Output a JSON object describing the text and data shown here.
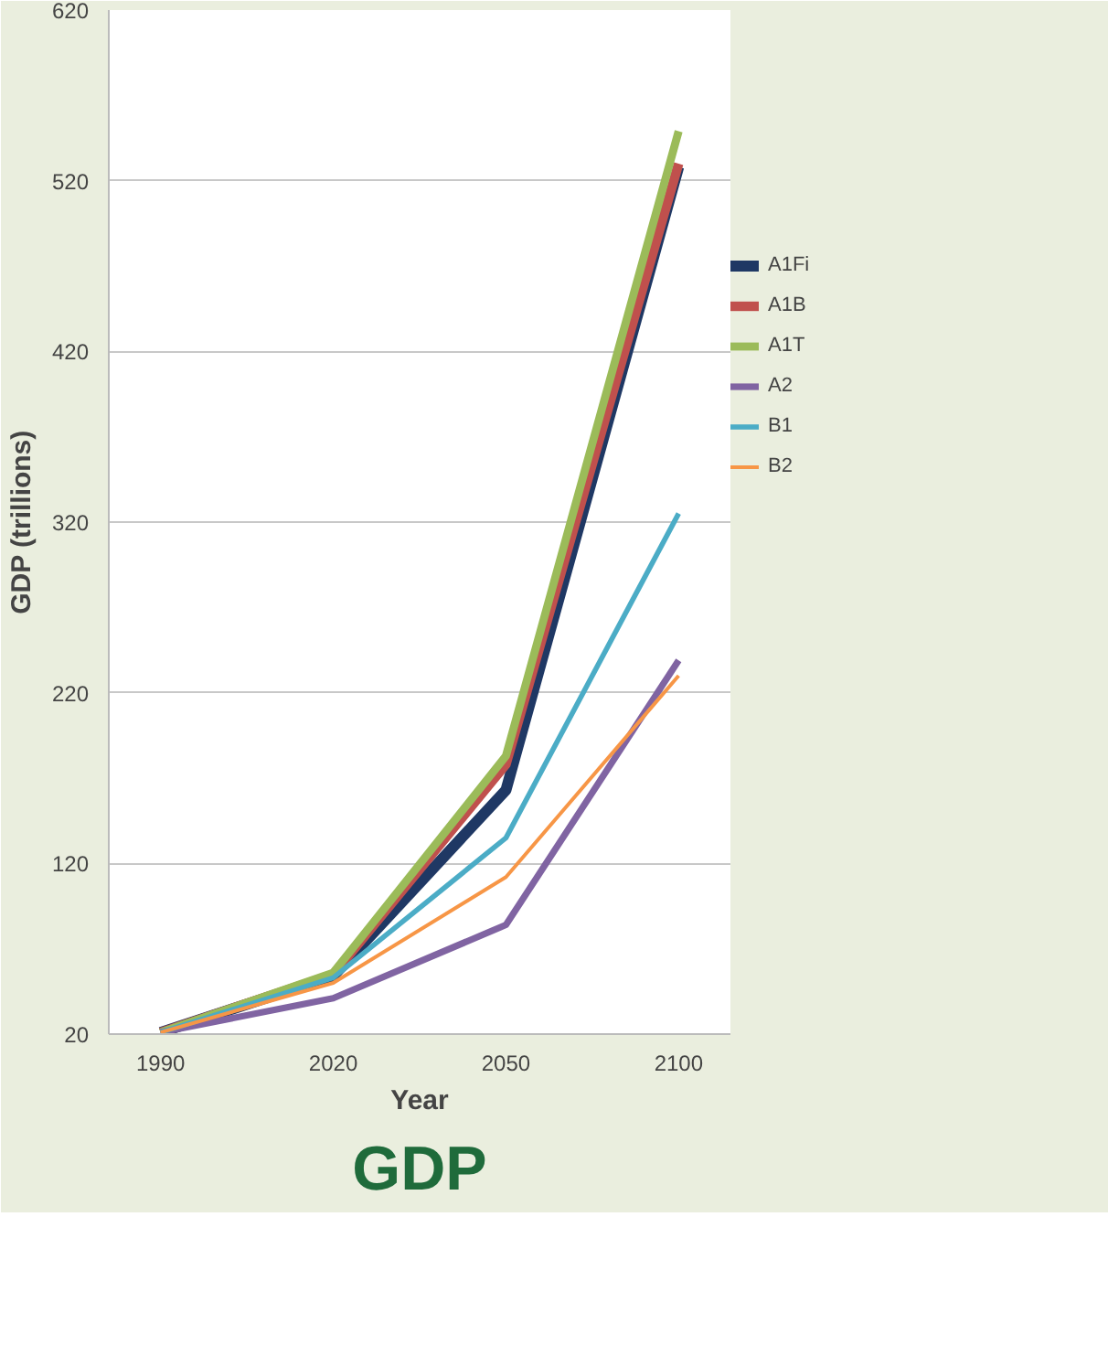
{
  "chart_data": {
    "type": "line",
    "title": "GDP",
    "xlabel": "Year",
    "ylabel": "GDP (trillions)",
    "categories": [
      "1990",
      "2020",
      "2050",
      "2100"
    ],
    "ylim": [
      20,
      620
    ],
    "yticks": [
      20,
      120,
      220,
      320,
      420,
      520,
      620
    ],
    "grid": "y",
    "legend": "right",
    "series": [
      {
        "name": "A1Fi",
        "color": "#1f3864",
        "values": [
          21,
          54,
          163,
          528
        ]
      },
      {
        "name": "A1B",
        "color": "#c0504d",
        "values": [
          21,
          55,
          178,
          530
        ]
      },
      {
        "name": "A1T",
        "color": "#9bbb59",
        "values": [
          21,
          56,
          183,
          549
        ]
      },
      {
        "name": "A2",
        "color": "#8064a2",
        "values": [
          21,
          41,
          84,
          239
        ]
      },
      {
        "name": "B1",
        "color": "#4bacc6",
        "values": [
          21,
          53,
          135,
          325
        ]
      },
      {
        "name": "B2",
        "color": "#f79646",
        "values": [
          21,
          50,
          112,
          230
        ]
      }
    ]
  }
}
